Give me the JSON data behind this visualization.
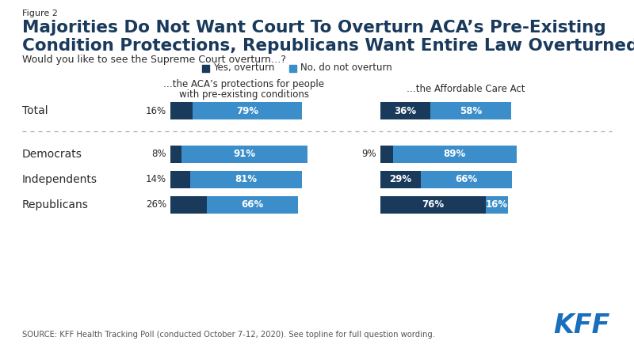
{
  "figure_label": "Figure 2",
  "title_line1": "Majorities Do Not Want Court To Overturn ACA’s Pre-Existing",
  "title_line2": "Condition Protections, Republicans Want Entire Law Overturned",
  "subtitle": "Would you like to see the Supreme Court overturn…?",
  "legend_yes": "Yes, overturn",
  "legend_no": "No, do not overturn",
  "col1_header_line1": "…the ACA’s protections for people",
  "col1_header_line2": "with pre-existing conditions",
  "col2_header": "…the Affordable Care Act",
  "source": "SOURCE: KFF Health Tracking Poll (conducted October 7-12, 2020). See topline for full question wording.",
  "groups": [
    "Total",
    "Democrats",
    "Independents",
    "Republicans"
  ],
  "col1_yes": [
    16,
    8,
    14,
    26
  ],
  "col1_no": [
    79,
    91,
    81,
    66
  ],
  "col2_yes": [
    36,
    9,
    29,
    76
  ],
  "col2_no": [
    58,
    89,
    66,
    16
  ],
  "color_yes": "#1a3a5c",
  "color_no": "#3b8ec9",
  "background": "#ffffff",
  "title_color": "#1a3a5c",
  "text_color": "#2a2a2a",
  "source_color": "#555555",
  "kff_color": "#1a6fbd"
}
